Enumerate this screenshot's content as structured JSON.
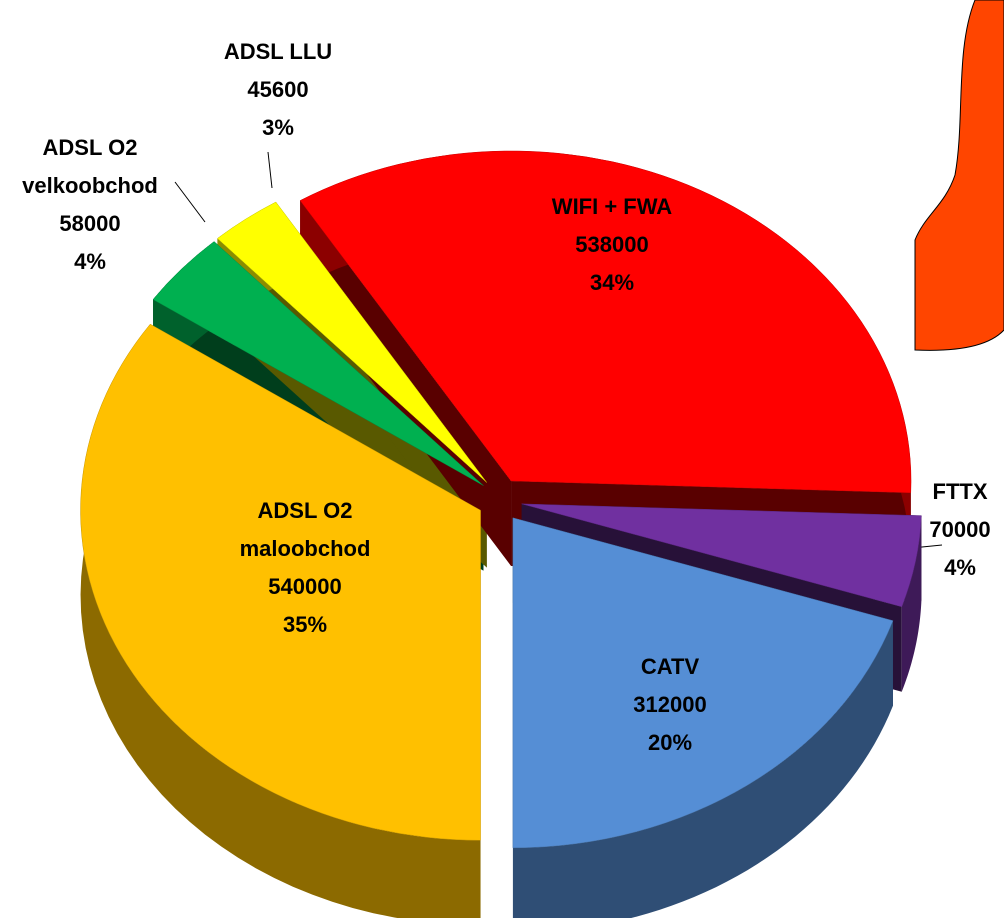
{
  "chart_data": {
    "type": "pie",
    "categories": [
      "ADSL O2 maloobchod",
      "ADSL O2 velkoobchod",
      "ADSL LLU",
      "WIFI + FWA",
      "FTTX",
      "CATV"
    ],
    "values": [
      540000,
      58000,
      45600,
      538000,
      70000,
      312000
    ],
    "percent_labels": [
      "35%",
      "4%",
      "3%",
      "34%",
      "4%",
      "20%"
    ],
    "colors": [
      "#FFC000",
      "#00B050",
      "#FFFF00",
      "#FF0000",
      "#7030A0",
      "#558ED5"
    ]
  }
}
